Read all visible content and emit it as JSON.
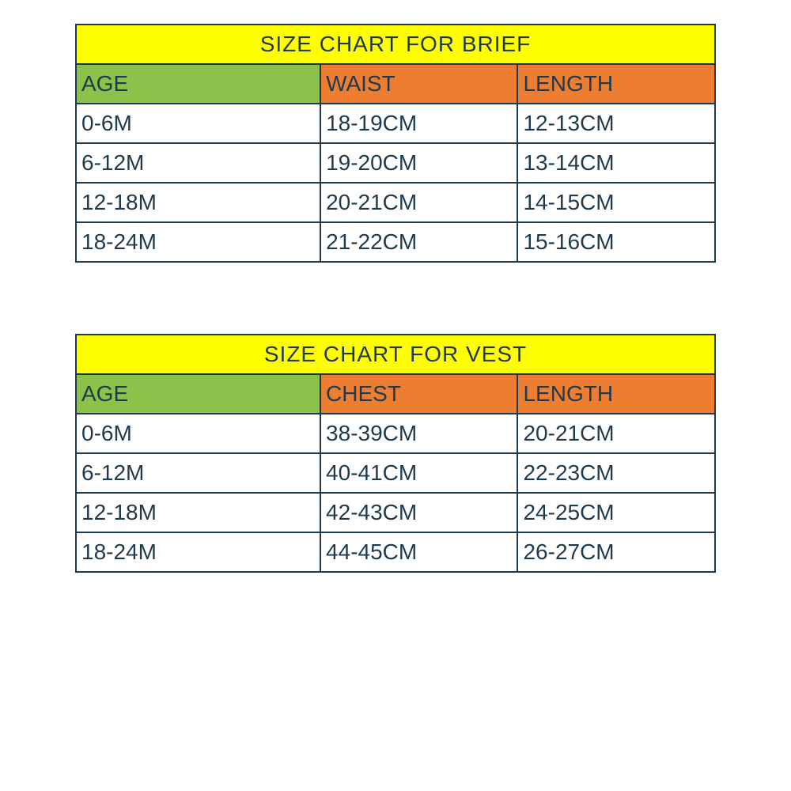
{
  "colors": {
    "border": "#1f3a4d",
    "title_bg": "#ffff00",
    "title_text": "#1f3a4d",
    "age_header_bg": "#8bc34a",
    "col_header_bg": "#ed7d31",
    "header_text": "#1f3a4d",
    "cell_bg": "#ffffff",
    "cell_text": "#1f3a4d"
  },
  "tables": [
    {
      "title": "SIZE CHART FOR BRIEF",
      "columns": [
        "AGE",
        "WAIST",
        "LENGTH"
      ],
      "rows": [
        [
          "0-6M",
          "18-19CM",
          "12-13CM"
        ],
        [
          "6-12M",
          "19-20CM",
          "13-14CM"
        ],
        [
          "12-18M",
          "20-21CM",
          "14-15CM"
        ],
        [
          "18-24M",
          "21-22CM",
          "15-16CM"
        ]
      ]
    },
    {
      "title": "SIZE CHART FOR VEST",
      "columns": [
        "AGE",
        "CHEST",
        "LENGTH"
      ],
      "rows": [
        [
          "0-6M",
          "38-39CM",
          "20-21CM"
        ],
        [
          "6-12M",
          "40-41CM",
          "22-23CM"
        ],
        [
          "12-18M",
          "42-43CM",
          "24-25CM"
        ],
        [
          "18-24M",
          "44-45CM",
          "26-27CM"
        ]
      ]
    }
  ]
}
